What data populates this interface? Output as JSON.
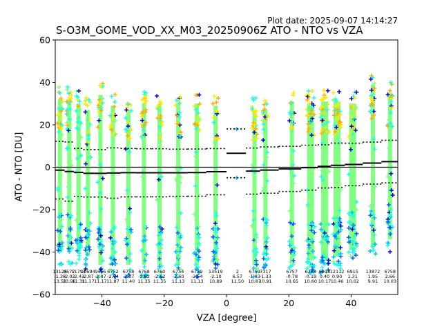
{
  "plot_date_label": "Plot date: 2025-09-07 14:14:27",
  "chart_data": {
    "type": "scatter",
    "title": "S-O3M_GOME_VOD_XX_M03_20250906Z ATO - NTO vs VZA",
    "xlabel": "VZA [degree]",
    "ylabel": "ATO - NTO [DU]",
    "xlim": [
      -55,
      55
    ],
    "ylim": [
      -60,
      60
    ],
    "xticks": [
      -40,
      -20,
      0,
      20,
      40
    ],
    "yticks": [
      -60,
      -40,
      -20,
      0,
      20,
      40,
      60
    ],
    "tick_labels_x": [
      "−40",
      "−20",
      "0",
      "20",
      "40"
    ],
    "tick_labels_y": [
      "−60",
      "−40",
      "−20",
      "0",
      "20",
      "40",
      "60"
    ],
    "marker": "+",
    "colors": {
      "dense_core": "#80ff80",
      "cyan": "#19ffe6",
      "sky": "#00bfff",
      "blue": "#0060ff",
      "navy": "#0000c8",
      "yellow": "#ffe600",
      "orange": "#ffaa00",
      "mean_line": "#000000",
      "zero_line": "#000000"
    },
    "bins_left": [
      {
        "vza": -53.5,
        "count": "13125",
        "mean": "-1.38",
        "std": "13.58",
        "lo": -46,
        "hi": 38
      },
      {
        "vza": -50.5,
        "count": "8577",
        "mean": "-2.02",
        "std": "13.96",
        "lo": -46,
        "hi": 38
      },
      {
        "vza": -47.5,
        "count": "11794",
        "mean": "-2.43",
        "std": "11.31",
        "lo": -46,
        "hi": 36
      },
      {
        "vza": -44.5,
        "count": "10694",
        "mean": "-2.87",
        "std": "11.17",
        "lo": -48,
        "hi": 33
      },
      {
        "vza": -40.5,
        "count": "9455",
        "mean": "-2.87",
        "std": "11.17",
        "lo": -52,
        "hi": 40
      },
      {
        "vza": -36.5,
        "count": "6752",
        "mean": "-2.74",
        "std": "11.87",
        "lo": -52,
        "hi": 35
      },
      {
        "vza": -31.5,
        "count": "6758",
        "mean": "-2.57",
        "std": "11.40",
        "lo": -52,
        "hi": 33
      },
      {
        "vza": -26.5,
        "count": "6768",
        "mean": "-2.62",
        "std": "11.35",
        "lo": -52,
        "hi": 36
      },
      {
        "vza": -21.5,
        "count": "6760",
        "mean": "-2.62",
        "std": "11.35",
        "lo": -52,
        "hi": 35
      },
      {
        "vza": -15.5,
        "count": "6754",
        "mean": "-2.60",
        "std": "11.13",
        "lo": -52,
        "hi": 36
      }
    ],
    "bins_right": [
      {
        "vza": -9.5,
        "count": "6759",
        "mean": "-2.54",
        "std": "11.13",
        "lo": -52,
        "hi": 36
      },
      {
        "vza": -3.5,
        "count": "13519",
        "mean": "-2.10",
        "std": "10.89",
        "lo": -52,
        "hi": 35
      },
      {
        "vza": 3.5,
        "count": "2",
        "mean": "6.57",
        "std": "11.50",
        "lo": -5,
        "hi": 18
      },
      {
        "vza": 9.0,
        "count": "6759",
        "mean": "-1.83",
        "std": "10.87",
        "lo": -52,
        "hi": 33
      },
      {
        "vza": 12.5,
        "count": "7317",
        "mean": "-1.33",
        "std": "10.91",
        "lo": -48,
        "hi": 33
      },
      {
        "vza": 21.0,
        "count": "6757",
        "mean": "-0.78",
        "std": "10.65",
        "lo": -50,
        "hi": 37
      },
      {
        "vza": 27.0,
        "count": "6760",
        "mean": "-0.19",
        "std": "10.60",
        "lo": -50,
        "hi": 36
      },
      {
        "vza": 31.5,
        "count": "6918",
        "mean": "0.40",
        "std": "10.17",
        "lo": -50,
        "hi": 37
      },
      {
        "vza": 35.5,
        "count": "12112",
        "mean": "0.90",
        "std": "10.46",
        "lo": -48,
        "hi": 37
      },
      {
        "vza": 40.5,
        "count": "6915",
        "mean": "1.31",
        "std": "10.02",
        "lo": -45,
        "hi": 36
      },
      {
        "vza": 47.0,
        "count": "13872",
        "mean": "1.95",
        "std": "9.91",
        "lo": -44,
        "hi": 45
      },
      {
        "vza": 52.5,
        "count": "6758",
        "mean": "2.66",
        "std": "10.03",
        "lo": -40,
        "hi": 41
      }
    ]
  }
}
